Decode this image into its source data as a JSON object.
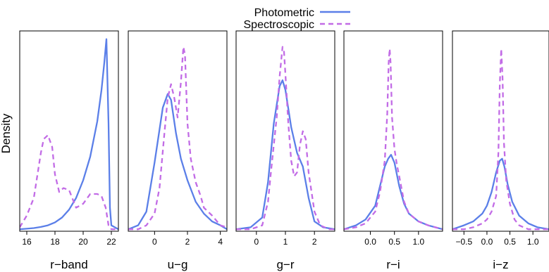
{
  "legend": {
    "entries": [
      {
        "label": "Photometric",
        "color": "#5b7fe8",
        "dash": "solid"
      },
      {
        "label": "Spectroscopic",
        "color": "#c26ce6",
        "dash": "dashed"
      }
    ]
  },
  "ylabel": "Density",
  "chart_data": [
    {
      "type": "line",
      "xlabel": "r−band",
      "xlim": [
        15.5,
        22.5
      ],
      "ticks": [
        16,
        18,
        20,
        22
      ],
      "tick_labels": [
        "16",
        "18",
        "20",
        "22"
      ],
      "ylim": [
        0,
        1.0
      ],
      "series": [
        {
          "name": "Photometric",
          "x": [
            15.5,
            16,
            16.5,
            17,
            17.5,
            18,
            18.5,
            19,
            19.5,
            20,
            20.5,
            21,
            21.3,
            21.5,
            21.65,
            21.8,
            21.9,
            22,
            22.5
          ],
          "y": [
            0.01,
            0.013,
            0.016,
            0.022,
            0.03,
            0.045,
            0.07,
            0.11,
            0.17,
            0.26,
            0.38,
            0.56,
            0.72,
            0.86,
            0.98,
            0.55,
            0.12,
            0.03,
            0.01
          ]
        },
        {
          "name": "Spectroscopic",
          "x": [
            15.5,
            16,
            16.5,
            17,
            17.2,
            17.5,
            17.8,
            18,
            18.3,
            18.6,
            19,
            19.5,
            20,
            20.5,
            21,
            21.3,
            21.6,
            21.8,
            22,
            22.5
          ],
          "y": [
            0.02,
            0.08,
            0.17,
            0.4,
            0.47,
            0.49,
            0.43,
            0.29,
            0.2,
            0.22,
            0.21,
            0.12,
            0.14,
            0.19,
            0.19,
            0.18,
            0.12,
            0.03,
            0.01,
            0.01
          ]
        }
      ]
    },
    {
      "type": "line",
      "xlabel": "u−g",
      "xlim": [
        -1.6,
        4.4
      ],
      "ticks": [
        0,
        2,
        4
      ],
      "tick_labels": [
        "0",
        "2",
        "4"
      ],
      "ylim": [
        0,
        1.0
      ],
      "series": [
        {
          "name": "Photometric",
          "x": [
            -1.6,
            -1,
            -0.5,
            0,
            0.5,
            0.8,
            1.0,
            1.3,
            1.6,
            2.0,
            2.5,
            3.0,
            3.5,
            4.0,
            4.4
          ],
          "y": [
            0.01,
            0.03,
            0.1,
            0.35,
            0.63,
            0.7,
            0.67,
            0.5,
            0.37,
            0.26,
            0.15,
            0.09,
            0.05,
            0.03,
            0.01
          ]
        },
        {
          "name": "Spectroscopic",
          "x": [
            -1.6,
            -1,
            -0.5,
            0,
            0.3,
            0.6,
            0.8,
            1.0,
            1.2,
            1.4,
            1.6,
            1.75,
            1.85,
            2.0,
            2.2,
            2.5,
            2.8,
            3.0,
            3.5,
            4.0,
            4.4
          ],
          "y": [
            0.01,
            0.01,
            0.03,
            0.09,
            0.22,
            0.5,
            0.68,
            0.75,
            0.68,
            0.58,
            0.76,
            0.94,
            0.9,
            0.55,
            0.37,
            0.25,
            0.18,
            0.12,
            0.08,
            0.03,
            0.02
          ]
        }
      ]
    },
    {
      "type": "line",
      "xlabel": "g−r",
      "xlim": [
        -0.7,
        2.7
      ],
      "ticks": [
        0,
        1,
        2
      ],
      "tick_labels": [
        "0",
        "1",
        "2"
      ],
      "ylim": [
        0,
        1.0
      ],
      "series": [
        {
          "name": "Photometric",
          "x": [
            -0.7,
            -0.2,
            0.2,
            0.4,
            0.6,
            0.8,
            0.9,
            1.0,
            1.2,
            1.4,
            1.6,
            1.8,
            2.0,
            2.3,
            2.7
          ],
          "y": [
            0.01,
            0.02,
            0.07,
            0.25,
            0.55,
            0.74,
            0.77,
            0.72,
            0.53,
            0.4,
            0.33,
            0.17,
            0.05,
            0.02,
            0.01
          ]
        },
        {
          "name": "Spectroscopic",
          "x": [
            -0.7,
            -0.2,
            0.2,
            0.4,
            0.5,
            0.6,
            0.7,
            0.8,
            0.9,
            0.95,
            1.0,
            1.1,
            1.2,
            1.3,
            1.4,
            1.5,
            1.6,
            1.7,
            1.8,
            2.0,
            2.2,
            2.5,
            2.7
          ],
          "y": [
            0.01,
            0.01,
            0.03,
            0.15,
            0.3,
            0.44,
            0.58,
            0.79,
            0.94,
            0.92,
            0.8,
            0.55,
            0.36,
            0.28,
            0.3,
            0.44,
            0.51,
            0.47,
            0.3,
            0.1,
            0.03,
            0.01,
            0.01
          ]
        }
      ]
    },
    {
      "type": "line",
      "xlabel": "r−i",
      "xlim": [
        -0.55,
        1.5
      ],
      "ticks": [
        0.0,
        0.5,
        1.0
      ],
      "tick_labels": [
        "0.0",
        "0.5",
        "1.0"
      ],
      "ylim": [
        0,
        1.0
      ],
      "series": [
        {
          "name": "Photometric",
          "x": [
            -0.55,
            -0.3,
            -0.1,
            0.1,
            0.2,
            0.3,
            0.37,
            0.43,
            0.5,
            0.6,
            0.7,
            0.8,
            1.0,
            1.2,
            1.5
          ],
          "y": [
            0.01,
            0.03,
            0.06,
            0.13,
            0.23,
            0.33,
            0.37,
            0.39,
            0.35,
            0.23,
            0.14,
            0.09,
            0.05,
            0.03,
            0.01
          ]
        },
        {
          "name": "Spectroscopic",
          "x": [
            -0.55,
            -0.3,
            -0.1,
            0.1,
            0.2,
            0.3,
            0.35,
            0.38,
            0.4,
            0.42,
            0.45,
            0.5,
            0.55,
            0.6,
            0.7,
            0.8,
            1.0,
            1.2,
            1.5
          ],
          "y": [
            0.01,
            0.02,
            0.04,
            0.1,
            0.2,
            0.36,
            0.6,
            0.86,
            0.93,
            0.86,
            0.58,
            0.42,
            0.34,
            0.28,
            0.15,
            0.09,
            0.05,
            0.03,
            0.01
          ]
        }
      ]
    },
    {
      "type": "line",
      "xlabel": "i−z",
      "xlim": [
        -0.75,
        1.35
      ],
      "ticks": [
        -0.5,
        0.0,
        0.5,
        1.0
      ],
      "tick_labels": [
        "−0.5",
        "0.0",
        "0.5",
        "1.0"
      ],
      "ylim": [
        0,
        1.0
      ],
      "series": [
        {
          "name": "Photometric",
          "x": [
            -0.75,
            -0.5,
            -0.3,
            -0.1,
            0.0,
            0.1,
            0.2,
            0.28,
            0.33,
            0.38,
            0.45,
            0.55,
            0.7,
            0.9,
            1.1,
            1.35
          ],
          "y": [
            0.01,
            0.03,
            0.05,
            0.09,
            0.13,
            0.2,
            0.3,
            0.36,
            0.37,
            0.33,
            0.24,
            0.15,
            0.08,
            0.04,
            0.02,
            0.01
          ]
        },
        {
          "name": "Spectroscopic",
          "x": [
            -0.75,
            -0.5,
            -0.3,
            -0.1,
            0.0,
            0.1,
            0.2,
            0.25,
            0.28,
            0.31,
            0.34,
            0.37,
            0.42,
            0.5,
            0.6,
            0.7,
            0.9,
            1.1,
            1.35
          ],
          "y": [
            0.01,
            0.01,
            0.02,
            0.04,
            0.06,
            0.1,
            0.18,
            0.4,
            0.75,
            0.93,
            0.78,
            0.45,
            0.26,
            0.14,
            0.06,
            0.03,
            0.01,
            0.01,
            0.01
          ]
        }
      ]
    }
  ]
}
